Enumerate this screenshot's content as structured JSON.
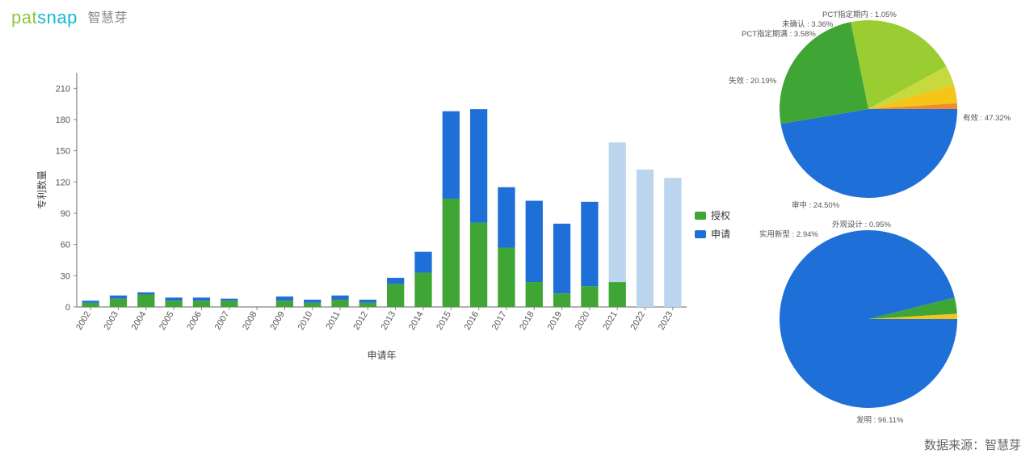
{
  "brand": {
    "part1": "pat",
    "part2": "snap",
    "cn": "智慧芽"
  },
  "footer": "数据来源：智慧芽",
  "legend": {
    "grant": {
      "label": "授权",
      "color": "#3fa535"
    },
    "apply": {
      "label": "申请",
      "color": "#1f6fd8"
    }
  },
  "bar_chart": {
    "type": "stacked-bar",
    "x_label": "申请年",
    "y_label": "专利数量",
    "ylim": [
      0,
      225
    ],
    "ytick_step": 30,
    "yticks": [
      0,
      30,
      60,
      90,
      120,
      150,
      180,
      210
    ],
    "label_fontsize": 12,
    "tick_fontsize": 11,
    "axis_color": "#666666",
    "tick_color": "#888888",
    "categories": [
      "2002",
      "2003",
      "2004",
      "2005",
      "2006",
      "2007",
      "2008",
      "2009",
      "2010",
      "2011",
      "2012",
      "2013",
      "2014",
      "2015",
      "2016",
      "2017",
      "2018",
      "2019",
      "2020",
      "2021",
      "2022",
      "2023"
    ],
    "series": {
      "grant": [
        4,
        8,
        12,
        6,
        6,
        6,
        0,
        6,
        4,
        7,
        4,
        22,
        33,
        104,
        81,
        57,
        24,
        13,
        20,
        24,
        0,
        0
      ],
      "apply": [
        2,
        3,
        2,
        3,
        3,
        2,
        0,
        4,
        3,
        4,
        3,
        6,
        20,
        84,
        109,
        58,
        78,
        67,
        81,
        0,
        0,
        0
      ],
      "future": [
        0,
        0,
        0,
        0,
        0,
        0,
        0,
        0,
        0,
        0,
        0,
        0,
        0,
        0,
        0,
        0,
        0,
        0,
        0,
        134,
        132,
        124
      ]
    },
    "colors": {
      "grant": "#3fa535",
      "apply": "#1f6fd8",
      "future": "#bcd5ef"
    },
    "bar_width": 0.62,
    "background_color": "#ffffff"
  },
  "pie1": {
    "type": "pie",
    "radius": 110,
    "label_fontsize": 9.5,
    "label_color": "#555555",
    "slices": [
      {
        "name": "有效",
        "value": 47.32,
        "color": "#1f6fd8",
        "label": "有效 : 47.32%"
      },
      {
        "name": "审中",
        "value": 24.5,
        "color": "#3fa535",
        "label": "审中 : 24.50%"
      },
      {
        "name": "失效",
        "value": 20.19,
        "color": "#9acd32",
        "label": "失效 : 20.19%"
      },
      {
        "name": "PCT指定期满",
        "value": 3.58,
        "color": "#c7d93d",
        "label": "PCT指定期满 : 3.58%"
      },
      {
        "name": "未确认",
        "value": 3.36,
        "color": "#f5c518",
        "label": "未确认 : 3.36%"
      },
      {
        "name": "PCT指定期内",
        "value": 1.05,
        "color": "#f08c2e",
        "label": "PCT指定期内 : 1.05%"
      }
    ]
  },
  "pie2": {
    "type": "pie",
    "radius": 110,
    "label_fontsize": 9.5,
    "label_color": "#555555",
    "slices": [
      {
        "name": "发明",
        "value": 96.11,
        "color": "#1f6fd8",
        "label": "发明 : 96.11%"
      },
      {
        "name": "实用新型",
        "value": 2.94,
        "color": "#3fa535",
        "label": "实用新型 : 2.94%"
      },
      {
        "name": "外观设计",
        "value": 0.95,
        "color": "#f5c518",
        "label": "外观设计 : 0.95%"
      }
    ]
  }
}
